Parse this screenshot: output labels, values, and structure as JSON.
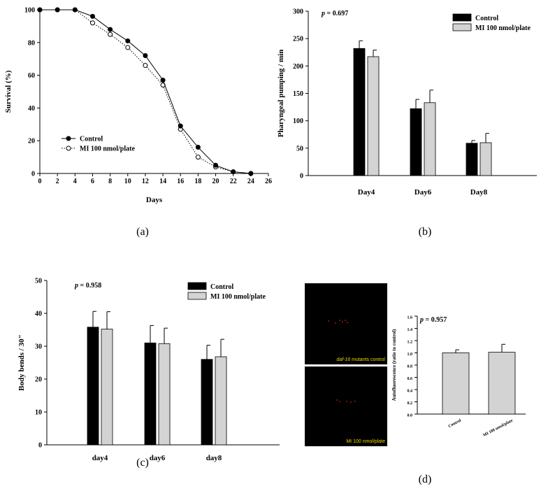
{
  "panels": {
    "a": {
      "caption": "(a)"
    },
    "b": {
      "caption": "(b)"
    },
    "c": {
      "caption": "(c)"
    },
    "d": {
      "caption": "(d)",
      "image_top_label_prefix": "daf-16",
      "image_top_label_suffix": " mutants control",
      "image_bottom_label": "MI 100 nmol/plate"
    }
  },
  "chart_data": [
    {
      "id": "a",
      "type": "line",
      "xlabel": "Days",
      "ylabel": "Survival (%)",
      "xlim": [
        0,
        26
      ],
      "ylim": [
        0,
        100
      ],
      "xticks": [
        0,
        2,
        4,
        6,
        8,
        10,
        12,
        14,
        16,
        18,
        20,
        22,
        24,
        26
      ],
      "yticks": [
        0,
        20,
        40,
        60,
        80,
        100
      ],
      "legend_position": "bottom-left",
      "series": [
        {
          "name": "Control",
          "marker": "filled-circle",
          "line": "solid",
          "x": [
            0,
            2,
            4,
            6,
            8,
            10,
            12,
            14,
            16,
            18,
            20,
            22,
            24
          ],
          "y": [
            100,
            100,
            100,
            96,
            88,
            81,
            72,
            57,
            29,
            16,
            5,
            1,
            0
          ]
        },
        {
          "name": "MI 100 nmol/plate",
          "marker": "open-circle",
          "line": "dotted",
          "x": [
            0,
            2,
            4,
            6,
            8,
            10,
            12,
            14,
            16,
            18,
            20,
            22,
            24
          ],
          "y": [
            100,
            100,
            100,
            92,
            85,
            77,
            66,
            54,
            27,
            10,
            4,
            1,
            0
          ]
        }
      ]
    },
    {
      "id": "b",
      "type": "bar",
      "ylabel": "Pharyngeal pumping / min",
      "annotation": "p = 0.697",
      "ylim": [
        0,
        300
      ],
      "yticks": [
        0,
        50,
        100,
        150,
        200,
        250,
        300
      ],
      "categories": [
        "Day4",
        "Day6",
        "Day8"
      ],
      "legend_position": "top-right",
      "series": [
        {
          "name": "Control",
          "color": "#000000",
          "values": [
            232,
            122,
            59
          ],
          "errors": [
            14,
            17,
            5
          ]
        },
        {
          "name": "MI 100 nmol/plate",
          "color": "#d3d3d3",
          "values": [
            217,
            133,
            60
          ],
          "errors": [
            12,
            23,
            17
          ]
        }
      ]
    },
    {
      "id": "c",
      "type": "bar",
      "ylabel": "Body bends / 30\"",
      "annotation": "p = 0.958",
      "ylim": [
        0,
        50
      ],
      "yticks": [
        0,
        10,
        20,
        30,
        40,
        50
      ],
      "categories": [
        "day4",
        "day6",
        "day8"
      ],
      "legend_position": "top-right",
      "series": [
        {
          "name": "Control",
          "color": "#000000",
          "values": [
            35.8,
            31.0,
            26.0
          ],
          "errors": [
            4.8,
            5.3,
            4.3
          ]
        },
        {
          "name": "MI 100 nmol/plate",
          "color": "#d3d3d3",
          "values": [
            35.2,
            30.8,
            26.8
          ],
          "errors": [
            5.3,
            4.7,
            5.3
          ]
        }
      ]
    },
    {
      "id": "d",
      "type": "bar",
      "ylabel": "Autofluorescence (ratio to control)",
      "annotation": "p = 0.957",
      "ylim": [
        0,
        1.6
      ],
      "yticks": [
        "0.0",
        "0.2",
        "0.4",
        "0.6",
        "0.8",
        "1.0",
        "1.2",
        "1.4",
        "1.6"
      ],
      "categories": [
        "Control",
        "MI 100 nmol/plate"
      ],
      "series": [
        {
          "color": "#d3d3d3",
          "values": [
            1.0,
            1.01
          ],
          "errors": [
            0.05,
            0.13
          ]
        }
      ]
    }
  ],
  "colors": {
    "control_bar": "#000000",
    "treated_bar": "#d3d3d3",
    "micro_bg": "#000000",
    "micro_label": "#e8d800",
    "fluorescence": "#c0201a"
  }
}
